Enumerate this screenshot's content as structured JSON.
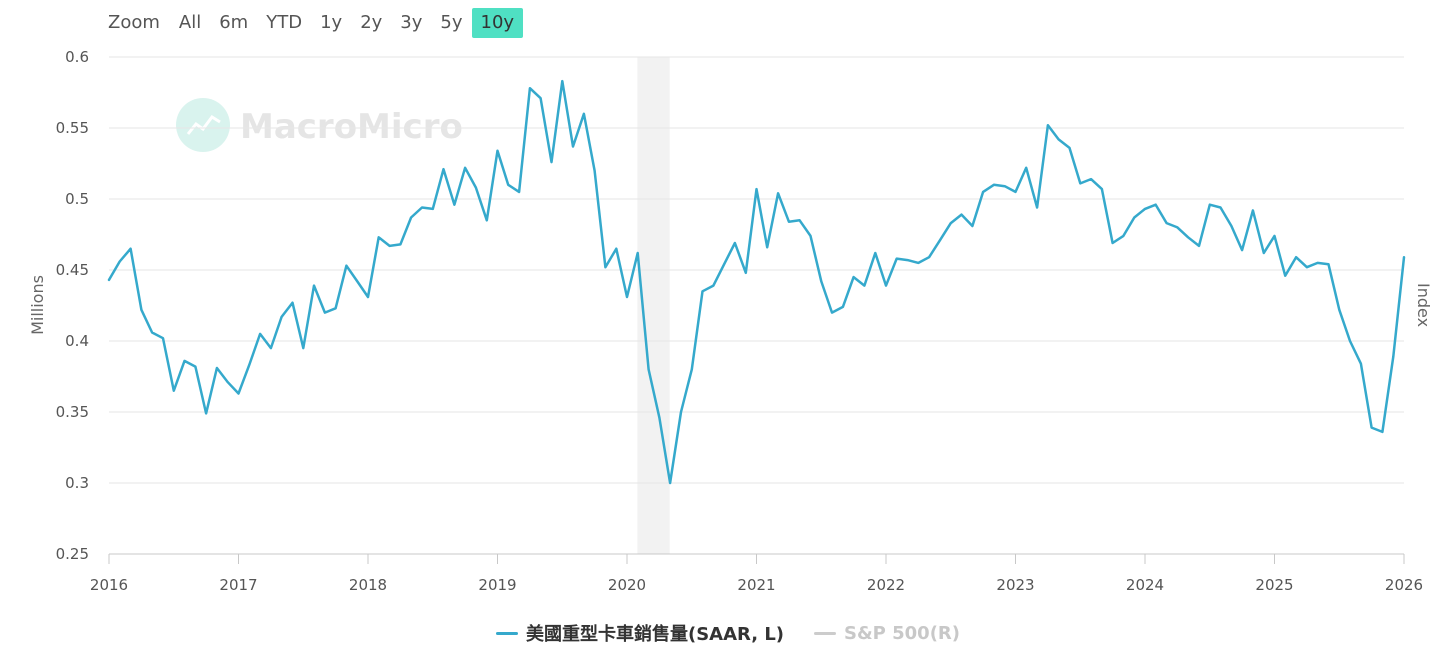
{
  "zoom": {
    "label": "Zoom",
    "options": [
      "All",
      "6m",
      "YTD",
      "1y",
      "2y",
      "3y",
      "5y",
      "10y"
    ],
    "active": "10y"
  },
  "watermark": "MacroMicro",
  "colors": {
    "series": "#35a9cc",
    "active_zoom": "#4fe0c3",
    "recession": "#f2f2f2",
    "muted": "#c8c8c8"
  },
  "legend": [
    {
      "label": "美國重型卡車銷售量(SAAR, L)",
      "color": "#35a9cc",
      "muted": false
    },
    {
      "label": "S&P 500(R)",
      "color": "#cccccc",
      "muted": true
    }
  ],
  "chart_data": {
    "type": "line",
    "ylabel": "Millions",
    "y2label": "Index",
    "ylim": [
      0.25,
      0.6
    ],
    "yticks": [
      "0.25",
      "0.3",
      "0.35",
      "0.4",
      "0.45",
      "0.5",
      "0.55",
      "0.6"
    ],
    "xlim": [
      2016,
      2026
    ],
    "xticks": [
      "2016",
      "2017",
      "2018",
      "2019",
      "2020",
      "2021",
      "2022",
      "2023",
      "2024",
      "2025",
      "2026"
    ],
    "grid": true,
    "legend_position": "bottom",
    "shaded_periods": [
      {
        "start": 2020.08,
        "end": 2020.33
      }
    ],
    "series": [
      {
        "name": "美國重型卡車銷售量(SAAR, L)",
        "x": [
          2016.0,
          2016.083,
          2016.167,
          2016.25,
          2016.333,
          2016.417,
          2016.5,
          2016.583,
          2016.667,
          2016.75,
          2016.833,
          2016.917,
          2017.0,
          2017.083,
          2017.167,
          2017.25,
          2017.333,
          2017.417,
          2017.5,
          2017.583,
          2017.667,
          2017.75,
          2017.833,
          2017.917,
          2018.0,
          2018.083,
          2018.167,
          2018.25,
          2018.333,
          2018.417,
          2018.5,
          2018.583,
          2018.667,
          2018.75,
          2018.833,
          2018.917,
          2019.0,
          2019.083,
          2019.167,
          2019.25,
          2019.333,
          2019.417,
          2019.5,
          2019.583,
          2019.667,
          2019.75,
          2019.833,
          2019.917,
          2020.0,
          2020.083,
          2020.167,
          2020.25,
          2020.333,
          2020.417,
          2020.5,
          2020.583,
          2020.667,
          2020.75,
          2020.833,
          2020.917,
          2021.0,
          2021.083,
          2021.167,
          2021.25,
          2021.333,
          2021.417,
          2021.5,
          2021.583,
          2021.667,
          2021.75,
          2021.833,
          2021.917,
          2022.0,
          2022.083,
          2022.167,
          2022.25,
          2022.333,
          2022.417,
          2022.5,
          2022.583,
          2022.667,
          2022.75,
          2022.833,
          2022.917,
          2023.0,
          2023.083,
          2023.167,
          2023.25,
          2023.333,
          2023.417,
          2023.5,
          2023.583,
          2023.667,
          2023.75,
          2023.833,
          2023.917,
          2024.0,
          2024.083,
          2024.167,
          2024.25,
          2024.333,
          2024.417,
          2024.5,
          2024.583,
          2024.667,
          2024.75,
          2024.833,
          2024.917,
          2025.0,
          2025.083,
          2025.167,
          2025.25,
          2025.333,
          2025.417,
          2025.5,
          2025.583,
          2025.667,
          2025.75,
          2025.833,
          2025.917,
          2026.0
        ],
        "y": [
          0.443,
          0.456,
          0.465,
          0.422,
          0.406,
          0.402,
          0.365,
          0.386,
          0.382,
          0.349,
          0.381,
          0.371,
          0.363,
          0.383,
          0.405,
          0.395,
          0.417,
          0.427,
          0.395,
          0.439,
          0.42,
          0.423,
          0.453,
          0.442,
          0.431,
          0.473,
          0.467,
          0.468,
          0.487,
          0.494,
          0.493,
          0.521,
          0.496,
          0.522,
          0.508,
          0.485,
          0.534,
          0.51,
          0.505,
          0.578,
          0.571,
          0.526,
          0.583,
          0.537,
          0.56,
          0.52,
          0.452,
          0.465,
          0.431,
          0.462,
          0.38,
          0.346,
          0.3,
          0.35,
          0.38,
          0.435,
          0.439,
          0.454,
          0.469,
          0.448,
          0.507,
          0.466,
          0.504,
          0.484,
          0.485,
          0.474,
          0.442,
          0.42,
          0.424,
          0.445,
          0.439,
          0.462,
          0.439,
          0.458,
          0.457,
          0.455,
          0.459,
          0.471,
          0.483,
          0.489,
          0.481,
          0.505,
          0.51,
          0.509,
          0.505,
          0.522,
          0.494,
          0.552,
          0.542,
          0.536,
          0.511,
          0.514,
          0.507,
          0.469,
          0.474,
          0.487,
          0.493,
          0.496,
          0.483,
          0.48,
          0.473,
          0.467,
          0.496,
          0.494,
          0.481,
          0.464,
          0.492,
          0.462,
          0.474,
          0.446,
          0.459,
          0.452,
          0.455,
          0.454,
          0.422,
          0.4,
          0.384,
          0.339,
          0.336,
          0.389,
          0.459
        ]
      }
    ]
  }
}
